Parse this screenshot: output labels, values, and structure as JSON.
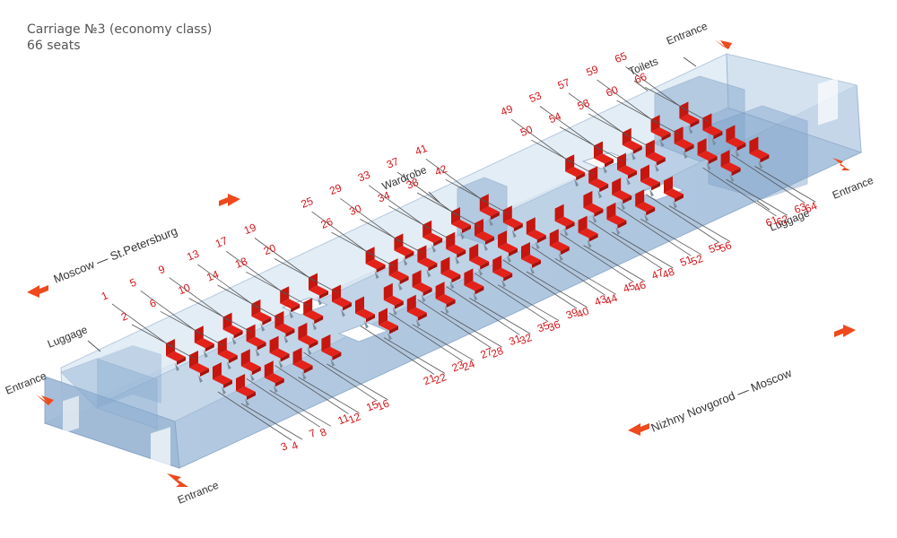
{
  "header": {
    "title": "Carriage №3 (economy class)",
    "subtitle": "66 seats"
  },
  "labels": {
    "entrance": "Entrance",
    "toilets": "Toilets",
    "wardrobe": "Wardrobe",
    "luggage": "Luggage",
    "route_top": "Moscow — St.Petersburg",
    "route_bottom": "Nizhny Novgorod — Moscow"
  },
  "colors": {
    "seat": "#e32219",
    "body": "#b9cfe4",
    "label": "#d4161b",
    "arrow": "#ee4a1d"
  },
  "seats": [
    {
      "n": "1",
      "c": "1",
      "r": "L"
    },
    {
      "n": "2",
      "c": "1",
      "r": "R"
    },
    {
      "n": "3",
      "c": "1",
      "r": "Lo"
    },
    {
      "n": "4",
      "c": "1",
      "r": "Ro"
    },
    {
      "n": "5",
      "c": "2",
      "r": "L"
    },
    {
      "n": "6",
      "c": "2",
      "r": "R"
    },
    {
      "n": "7",
      "c": "2",
      "r": "Lo"
    },
    {
      "n": "8",
      "c": "2",
      "r": "Ro"
    },
    {
      "n": "9",
      "c": "3",
      "r": "L"
    },
    {
      "n": "10",
      "c": "3",
      "r": "R"
    },
    {
      "n": "11",
      "c": "3",
      "r": "Lo"
    },
    {
      "n": "12",
      "c": "3",
      "r": "Ro"
    },
    {
      "n": "13",
      "c": "4",
      "r": "L"
    },
    {
      "n": "14",
      "c": "4",
      "r": "R"
    },
    {
      "n": "15",
      "c": "4",
      "r": "Lo"
    },
    {
      "n": "16",
      "c": "4",
      "r": "Ro"
    },
    {
      "n": "17",
      "c": "5",
      "r": "L"
    },
    {
      "n": "18",
      "c": "5",
      "r": "R"
    },
    {
      "n": "19",
      "c": "6",
      "r": "L"
    },
    {
      "n": "20",
      "c": "6",
      "r": "R"
    },
    {
      "n": "21",
      "c": "6",
      "r": "Lo"
    },
    {
      "n": "22",
      "c": "6",
      "r": "Ro"
    },
    {
      "n": "23",
      "c": "7",
      "r": "Lo"
    },
    {
      "n": "24",
      "c": "7",
      "r": "Ro"
    },
    {
      "n": "25",
      "c": "8",
      "r": "L"
    },
    {
      "n": "26",
      "c": "8",
      "r": "R"
    },
    {
      "n": "27",
      "c": "8",
      "r": "Lo"
    },
    {
      "n": "28",
      "c": "8",
      "r": "Ro"
    },
    {
      "n": "29",
      "c": "9",
      "r": "L"
    },
    {
      "n": "30",
      "c": "9",
      "r": "R"
    },
    {
      "n": "31",
      "c": "9",
      "r": "Lo"
    },
    {
      "n": "32",
      "c": "9",
      "r": "Ro"
    },
    {
      "n": "33",
      "c": "10",
      "r": "L"
    },
    {
      "n": "34",
      "c": "10",
      "r": "R"
    },
    {
      "n": "35",
      "c": "10",
      "r": "Lo"
    },
    {
      "n": "36",
      "c": "10",
      "r": "Ro"
    },
    {
      "n": "37",
      "c": "11",
      "r": "L"
    },
    {
      "n": "38",
      "c": "11",
      "r": "R"
    },
    {
      "n": "39",
      "c": "11",
      "r": "Lo"
    },
    {
      "n": "40",
      "c": "11",
      "r": "Ro"
    },
    {
      "n": "41",
      "c": "12",
      "r": "L"
    },
    {
      "n": "42",
      "c": "12",
      "r": "R"
    },
    {
      "n": "43",
      "c": "12",
      "r": "Lo"
    },
    {
      "n": "44",
      "c": "12",
      "r": "Ro"
    },
    {
      "n": "45",
      "c": "13",
      "r": "Lo"
    },
    {
      "n": "46",
      "c": "13",
      "r": "Ro"
    },
    {
      "n": "47",
      "c": "14",
      "r": "Lo"
    },
    {
      "n": "48",
      "c": "14",
      "r": "Ro"
    },
    {
      "n": "49",
      "c": "15",
      "r": "L"
    },
    {
      "n": "50",
      "c": "15",
      "r": "R"
    },
    {
      "n": "51",
      "c": "15",
      "r": "Lo"
    },
    {
      "n": "52",
      "c": "15",
      "r": "Ro"
    },
    {
      "n": "53",
      "c": "16",
      "r": "L"
    },
    {
      "n": "54",
      "c": "16",
      "r": "R"
    },
    {
      "n": "55",
      "c": "16",
      "r": "Lo"
    },
    {
      "n": "56",
      "c": "16",
      "r": "Ro"
    },
    {
      "n": "57",
      "c": "17",
      "r": "L"
    },
    {
      "n": "58",
      "c": "17",
      "r": "R"
    },
    {
      "n": "59",
      "c": "18",
      "r": "L"
    },
    {
      "n": "60",
      "c": "18",
      "r": "R"
    },
    {
      "n": "61",
      "c": "18",
      "r": "Lo"
    },
    {
      "n": "62",
      "c": "18",
      "r": "Ro"
    },
    {
      "n": "63",
      "c": "19",
      "r": "Lo"
    },
    {
      "n": "64",
      "c": "19",
      "r": "Ro"
    },
    {
      "n": "65",
      "c": "19",
      "r": "L"
    },
    {
      "n": "66",
      "c": "19",
      "r": "R"
    }
  ]
}
